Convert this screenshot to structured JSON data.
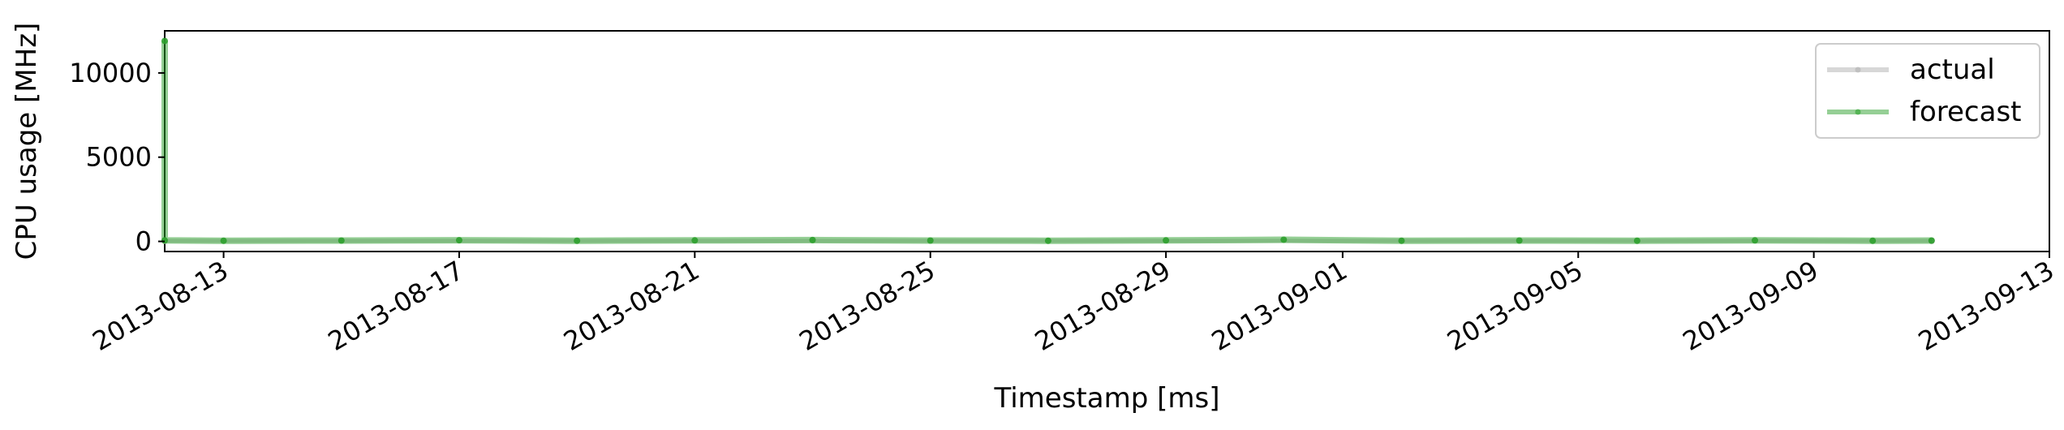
{
  "chart_data": {
    "type": "line",
    "xlabel": "Timestamp [ms]",
    "ylabel": "CPU usage [MHz]",
    "x_axis_type": "date",
    "xlim": [
      "2013-08-12",
      "2013-09-13"
    ],
    "ylim": [
      -600,
      12500
    ],
    "x_ticks": [
      "2013-08-13",
      "2013-08-17",
      "2013-08-21",
      "2013-08-25",
      "2013-08-29",
      "2013-09-01",
      "2013-09-05",
      "2013-09-09",
      "2013-09-13"
    ],
    "y_ticks": [
      0,
      5000,
      10000
    ],
    "grid": false,
    "legend_position": "top-right",
    "series": [
      {
        "name": "actual",
        "color": "#b0b0b0",
        "x": [
          "2013-08-12",
          "2013-09-11"
        ],
        "y": [
          30,
          30
        ]
      },
      {
        "name": "forecast",
        "color": "#2ca02c",
        "x": [
          "2013-08-12",
          "2013-08-12",
          "2013-08-13",
          "2013-08-15",
          "2013-08-17",
          "2013-08-19",
          "2013-08-21",
          "2013-08-23",
          "2013-08-25",
          "2013-08-27",
          "2013-08-29",
          "2013-08-31",
          "2013-09-02",
          "2013-09-04",
          "2013-09-06",
          "2013-09-08",
          "2013-09-10",
          "2013-09-11"
        ],
        "y": [
          11900,
          60,
          40,
          50,
          70,
          40,
          60,
          80,
          50,
          40,
          60,
          100,
          40,
          50,
          40,
          60,
          40,
          50
        ]
      }
    ]
  }
}
